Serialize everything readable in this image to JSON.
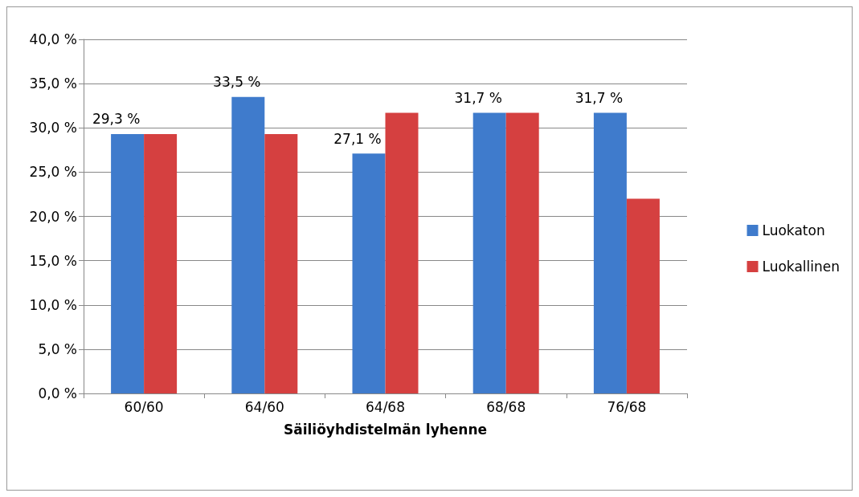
{
  "chart_data": {
    "type": "bar",
    "xlabel": "Säiliöyhdistelmän lyhenne",
    "categories": [
      "60/60",
      "64/60",
      "64/68",
      "68/68",
      "76/68"
    ],
    "series": [
      {
        "name": "Luokaton",
        "color": "#3f7bcc",
        "values": [
          29.3,
          33.5,
          27.1,
          31.7,
          31.7
        ],
        "value_labels": [
          "29,3 %",
          "33,5 %",
          "27,1 %",
          "31,7 %",
          "31,7 %"
        ]
      },
      {
        "name": "Luokallinen",
        "color": "#d54040",
        "values": [
          29.3,
          29.3,
          31.7,
          31.7,
          22.0
        ]
      }
    ],
    "ylim": [
      0,
      40
    ],
    "yticks": [
      {
        "value": 0,
        "label": "0,0 %"
      },
      {
        "value": 5,
        "label": "5,0 %"
      },
      {
        "value": 10,
        "label": "10,0 %"
      },
      {
        "value": 15,
        "label": "15,0 %"
      },
      {
        "value": 20,
        "label": "20,0 %"
      },
      {
        "value": 25,
        "label": "25,0 %"
      },
      {
        "value": 30,
        "label": "30,0 %"
      },
      {
        "value": 35,
        "label": "35,0 %"
      },
      {
        "value": 40,
        "label": "40,0 %"
      }
    ],
    "grid": "y",
    "legend": "right"
  }
}
